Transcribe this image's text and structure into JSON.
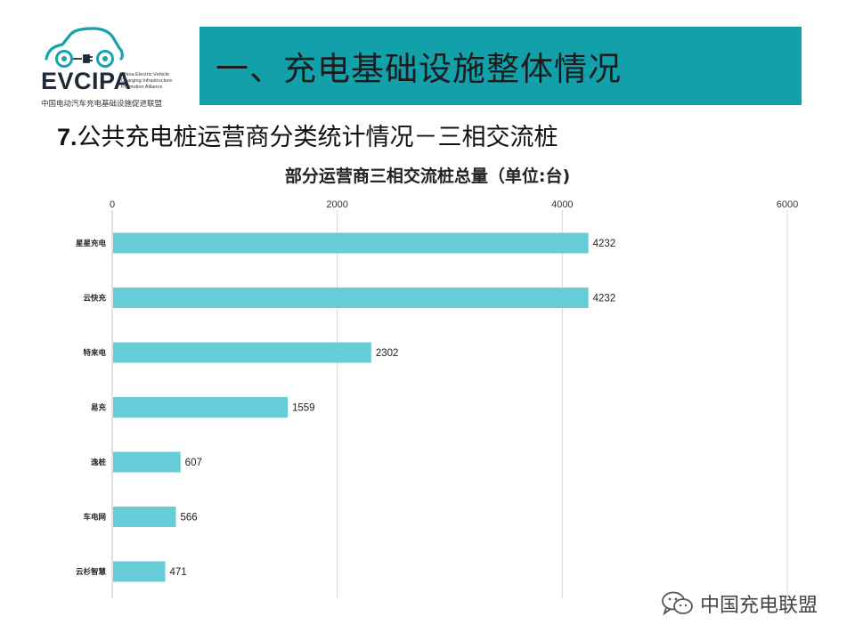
{
  "logo": {
    "abbr": "EVCIPA",
    "english_lines": [
      "China Electric Vehicle",
      "Charging Infrastructure",
      "Promotion Alliance"
    ],
    "chinese_name": "中国电动汽车充电基础设施促进联盟"
  },
  "header": {
    "title": "一、充电基础设施整体情况"
  },
  "section": {
    "number": "7.",
    "title": "公共充电桩运营商分类统计情况－三相交流桩"
  },
  "watermark": {
    "text": "中国充电联盟"
  },
  "colors": {
    "banner": "#12a1ab",
    "bar": "#66ccd8",
    "grid": "#d9d9d9"
  },
  "chart_data": {
    "type": "bar",
    "orientation": "horizontal",
    "title": "部分运营商三相交流桩总量（单位:台)",
    "categories": [
      "星星充电",
      "云快充",
      "特来电",
      "易充",
      "逸桩",
      "车电网",
      "云杉智慧"
    ],
    "values": [
      4232,
      4232,
      2302,
      1559,
      607,
      566,
      471
    ],
    "xlim": [
      0,
      6000
    ],
    "xticks": [
      0,
      2000,
      4000,
      6000
    ],
    "x_axis_position": "top",
    "grid": true,
    "legend": "none"
  }
}
